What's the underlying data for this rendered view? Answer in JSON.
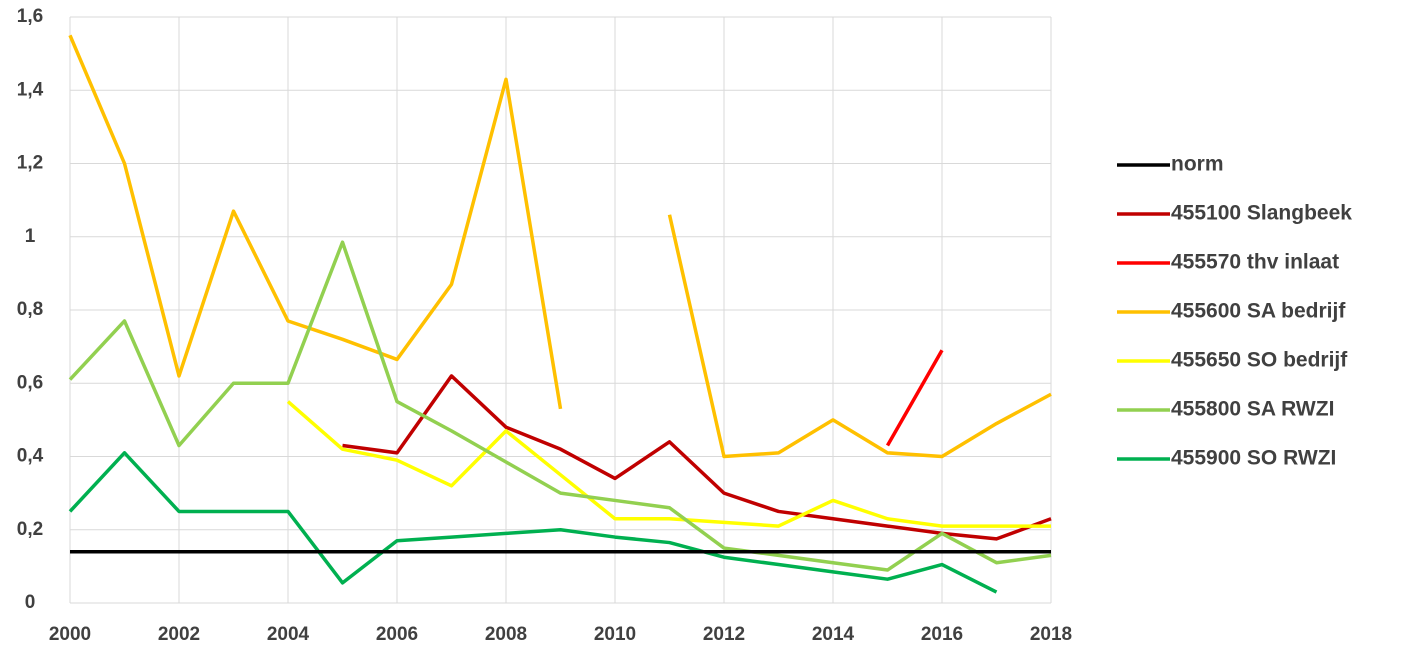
{
  "chart_data": {
    "type": "line",
    "x": [
      2000,
      2001,
      2002,
      2003,
      2004,
      2005,
      2006,
      2007,
      2008,
      2009,
      2010,
      2011,
      2012,
      2013,
      2014,
      2015,
      2016,
      2017,
      2018
    ],
    "series": [
      {
        "name": "norm",
        "color": "#000000",
        "values": [
          0.14,
          0.14,
          0.14,
          0.14,
          0.14,
          0.14,
          0.14,
          0.14,
          0.14,
          0.14,
          0.14,
          0.14,
          0.14,
          0.14,
          0.14,
          0.14,
          0.14,
          0.14,
          0.14
        ]
      },
      {
        "name": "455100 Slangbeek",
        "color": "#c00000",
        "values": [
          null,
          null,
          null,
          null,
          null,
          0.43,
          0.41,
          0.62,
          0.48,
          0.42,
          0.34,
          0.44,
          0.3,
          0.25,
          0.23,
          0.21,
          0.19,
          0.175,
          0.23
        ]
      },
      {
        "name": "455570 thv inlaat",
        "color": "#ff0000",
        "values": [
          null,
          null,
          null,
          null,
          null,
          null,
          null,
          null,
          null,
          null,
          null,
          null,
          null,
          null,
          null,
          0.43,
          0.69,
          null,
          null
        ]
      },
      {
        "name": "455600 SA bedrijf",
        "color": "#ffc000",
        "values": [
          1.55,
          1.2,
          0.62,
          1.07,
          0.77,
          0.72,
          0.665,
          0.87,
          1.43,
          0.53,
          null,
          1.06,
          0.4,
          0.41,
          0.5,
          0.41,
          0.4,
          0.49,
          0.57
        ]
      },
      {
        "name": "455650 SO bedrijf",
        "color": "#ffff00",
        "values": [
          null,
          null,
          null,
          null,
          0.55,
          0.42,
          0.39,
          0.32,
          0.47,
          0.35,
          0.23,
          0.23,
          0.22,
          0.21,
          0.28,
          0.23,
          0.21,
          0.21,
          0.21
        ]
      },
      {
        "name": "455800 SA RWZI",
        "color": "#92d050",
        "values": [
          0.61,
          0.77,
          0.43,
          0.6,
          0.6,
          0.985,
          0.55,
          0.47,
          0.385,
          0.3,
          0.28,
          0.26,
          0.15,
          0.13,
          0.11,
          0.09,
          0.19,
          0.11,
          0.13
        ]
      },
      {
        "name": "455900 SO RWZI",
        "color": "#00b050",
        "values": [
          0.25,
          0.41,
          0.25,
          0.25,
          0.25,
          0.055,
          0.17,
          0.18,
          0.19,
          0.2,
          0.18,
          0.165,
          0.125,
          0.105,
          0.085,
          0.065,
          0.105,
          0.03,
          null
        ]
      }
    ],
    "xlim": [
      2000,
      2018
    ],
    "xticks": [
      2000,
      2002,
      2004,
      2006,
      2008,
      2010,
      2012,
      2014,
      2016,
      2018
    ],
    "ylim": [
      0,
      1.6
    ],
    "yticks": [
      0,
      {
        "value": 0.2,
        "label": "0,2"
      },
      {
        "value": 0.4,
        "label": "0,4"
      },
      {
        "value": 0.6,
        "label": "0,6"
      },
      {
        "value": 0.8,
        "label": "0,8"
      },
      1,
      {
        "value": 1.2,
        "label": "1,2"
      },
      {
        "value": 1.4,
        "label": "1,4"
      },
      {
        "value": 1.6,
        "label": "1,6"
      }
    ],
    "grid": true,
    "legend": "right"
  }
}
